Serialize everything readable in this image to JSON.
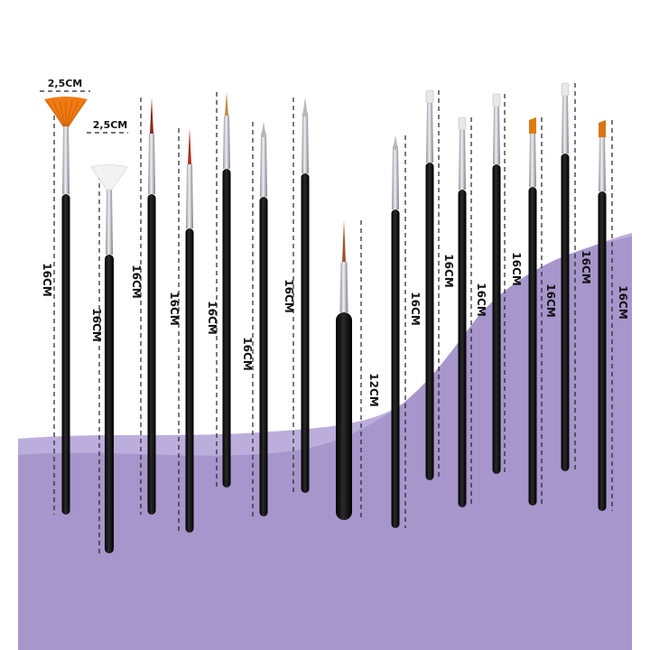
{
  "product": {
    "labels": {
      "fan_width_large": "2,5CM",
      "fan_width_small": "2,5CM",
      "length_16": "16CM",
      "length_12": "12CM"
    },
    "brush_count": 15,
    "brushes": [
      {
        "tip": "fan",
        "tip_color": "#f07a12",
        "length_label": "16CM"
      },
      {
        "tip": "fan",
        "tip_color": "#f2f2f2",
        "length_label": "16CM"
      },
      {
        "tip": "liner",
        "tip_color": "#8a2a1a",
        "length_label": "16CM"
      },
      {
        "tip": "liner",
        "tip_color": "#b03020",
        "length_label": "16CM"
      },
      {
        "tip": "liner",
        "tip_color": "#c08a40",
        "length_label": "16CM"
      },
      {
        "tip": "dotting",
        "tip_color": "#b8b8b8",
        "length_label": "16CM"
      },
      {
        "tip": "dotting",
        "tip_color": "#b8b8b8",
        "length_label": "16CM"
      },
      {
        "tip": "liner",
        "tip_color": "#a0522d",
        "length_label": "12CM"
      },
      {
        "tip": "dotting",
        "tip_color": "#b8b8b8",
        "length_label": "16CM"
      },
      {
        "tip": "flat",
        "tip_color": "#e8e8e8",
        "length_label": "16CM"
      },
      {
        "tip": "flat",
        "tip_color": "#e8e8e8",
        "length_label": "16CM"
      },
      {
        "tip": "flat",
        "tip_color": "#e8e8e8",
        "length_label": "16CM"
      },
      {
        "tip": "angled",
        "tip_color": "#e07a10",
        "length_label": "16CM"
      },
      {
        "tip": "flat",
        "tip_color": "#e8e8e8",
        "length_label": "16CM"
      },
      {
        "tip": "angled",
        "tip_color": "#d9740e",
        "length_label": "16CM"
      }
    ]
  },
  "colors": {
    "background": "#ffffff",
    "wave_light": "#b9abd8",
    "wave_main": "#a897cc",
    "handle": "#111111",
    "ferrule": "#c9c9cf"
  }
}
